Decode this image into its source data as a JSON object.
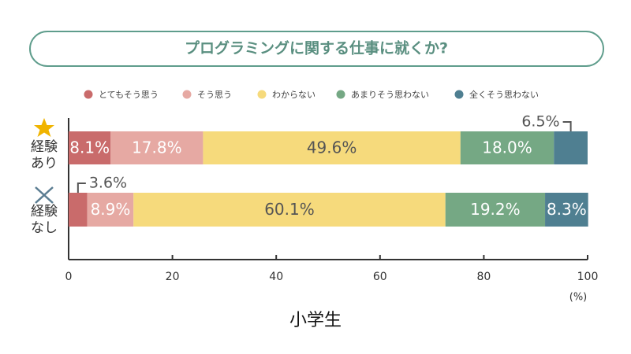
{
  "chart_data": {
    "type": "stacked-bar-horizontal",
    "title": "プログラミングに関する仕事に就くか?",
    "caption": "小学生",
    "categories": [
      "経験あり",
      "経験なし"
    ],
    "series": [
      {
        "name": "とてもそう思う",
        "color": "#c96b6b",
        "values": [
          8.1,
          3.6
        ],
        "value_labels": [
          "8.1%",
          "3.6%"
        ]
      },
      {
        "name": "そう思う",
        "color": "#e6a9a3",
        "values": [
          17.8,
          8.9
        ],
        "value_labels": [
          "17.8%",
          "8.9%"
        ]
      },
      {
        "name": "わからない",
        "color": "#f6da7c",
        "values": [
          49.6,
          60.1
        ],
        "value_labels": [
          "49.6%",
          "60.1%"
        ]
      },
      {
        "name": "あまりそう思わない",
        "color": "#75a884",
        "values": [
          18.0,
          19.2
        ],
        "value_labels": [
          "18.0%",
          "19.2%"
        ]
      },
      {
        "name": "全くそう思わない",
        "color": "#4f7f91",
        "values": [
          6.5,
          8.3
        ],
        "value_labels": [
          "6.5%",
          "8.3%"
        ]
      }
    ],
    "xlim": [
      0,
      100
    ],
    "xticks": [
      0,
      20,
      40,
      60,
      80,
      100
    ],
    "x_unit": "(%)"
  }
}
